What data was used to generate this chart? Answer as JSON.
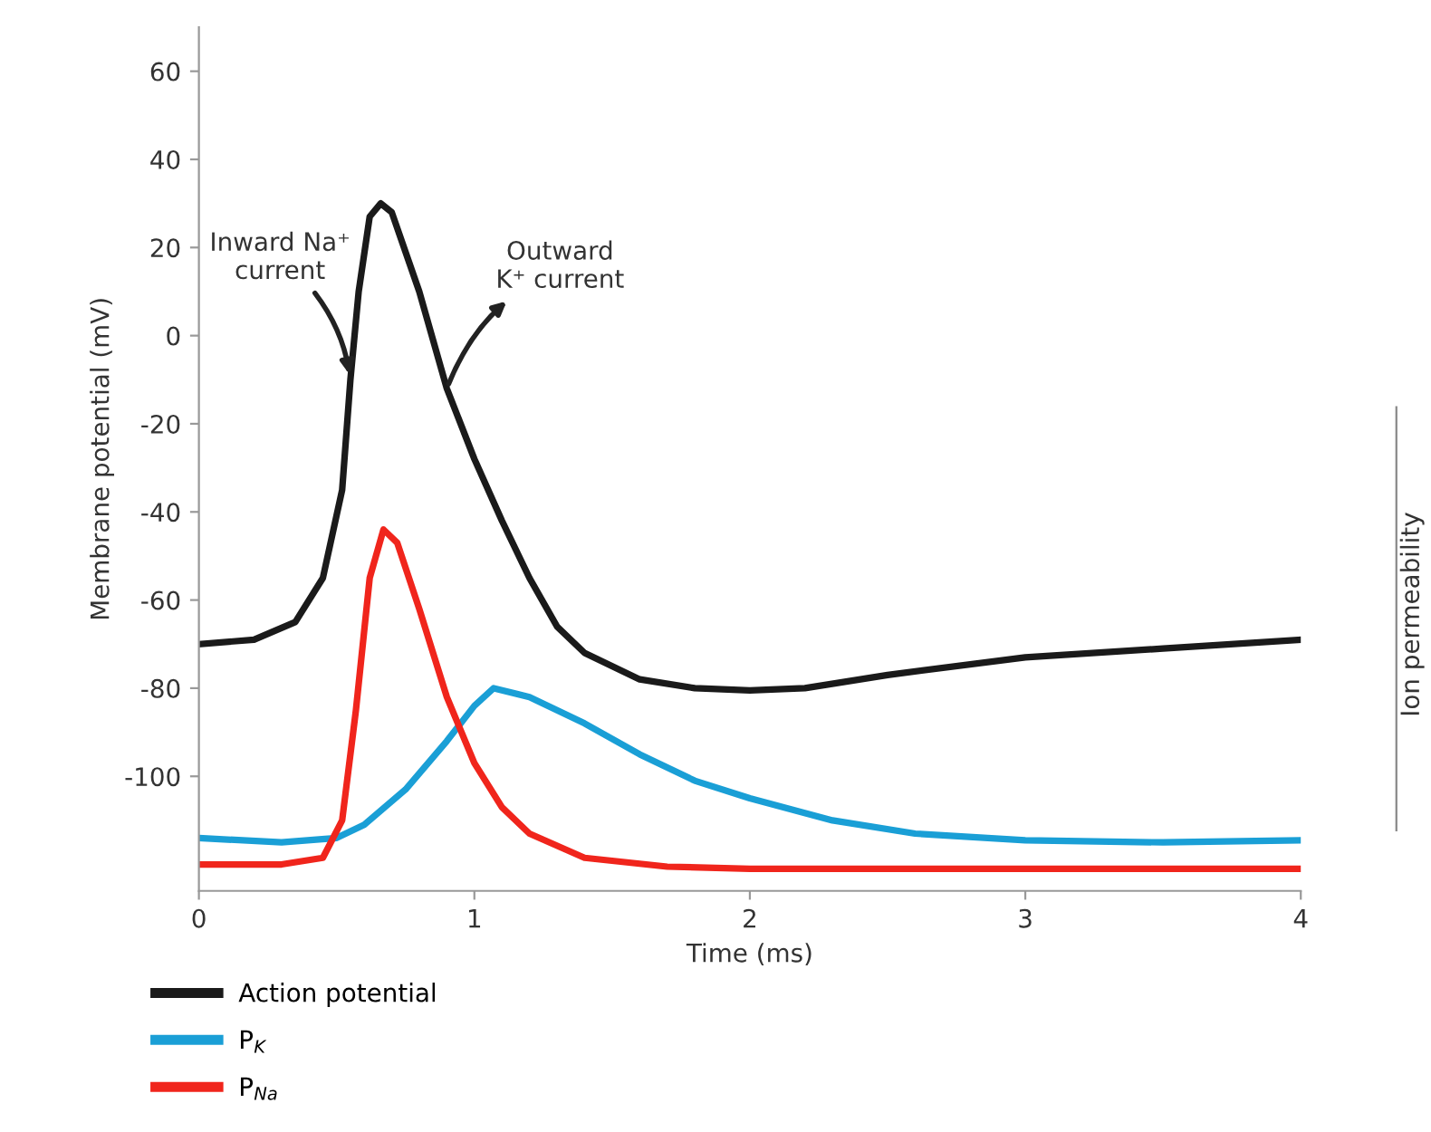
{
  "chart_data": {
    "type": "line",
    "xlabel": "Time (ms)",
    "ylabel": "Membrane potential (mV)",
    "y2label": "Ion permeability",
    "xlim": [
      0,
      4
    ],
    "xticks": [
      0,
      1,
      2,
      3,
      4
    ],
    "ylim": [
      -126,
      70
    ],
    "yticks": [
      -100,
      -80,
      -60,
      -40,
      -20,
      0,
      20,
      40,
      60
    ],
    "grid": false,
    "legend": "bottom left",
    "marker": "none",
    "line_style": "solid",
    "annotations": [
      {
        "text": "Inward Na⁺\ncurrent",
        "x": 0.55,
        "y": -10
      },
      {
        "text": "Outward\nK⁺ current",
        "x": 0.9,
        "y": -12
      }
    ],
    "series": [
      {
        "name": "Action potential",
        "color": "#1a1a1a",
        "x": [
          0,
          0.2,
          0.35,
          0.45,
          0.52,
          0.55,
          0.58,
          0.62,
          0.66,
          0.7,
          0.8,
          0.9,
          1.0,
          1.1,
          1.2,
          1.3,
          1.4,
          1.6,
          1.8,
          2.0,
          2.2,
          2.5,
          3.0,
          3.5,
          4.0
        ],
        "values": [
          -70,
          -69,
          -65,
          -55,
          -35,
          -10,
          10,
          27,
          30,
          28,
          10,
          -12,
          -28,
          -42,
          -55,
          -66,
          -72,
          -78,
          -80,
          -80.5,
          -80,
          -77,
          -73,
          -71,
          -69
        ]
      },
      {
        "name": "P$_{K}$",
        "color": "#1a9fd6",
        "x": [
          0,
          0.3,
          0.5,
          0.6,
          0.75,
          0.9,
          1.0,
          1.07,
          1.2,
          1.4,
          1.6,
          1.8,
          2.0,
          2.3,
          2.6,
          3.0,
          3.5,
          4.0
        ],
        "values": [
          -114,
          -115,
          -114,
          -111,
          -103,
          -92,
          -84,
          -80,
          -82,
          -88,
          -95,
          -101,
          -105,
          -110,
          -113,
          -114.5,
          -115,
          -114.5
        ]
      },
      {
        "name": "P$_{Na}$",
        "color": "#f0251c",
        "x": [
          0,
          0.3,
          0.45,
          0.52,
          0.57,
          0.62,
          0.67,
          0.72,
          0.8,
          0.9,
          1.0,
          1.1,
          1.2,
          1.4,
          1.7,
          2.0,
          4.0
        ],
        "values": [
          -120,
          -120,
          -118.5,
          -110,
          -85,
          -55,
          -44,
          -47,
          -62,
          -82,
          -97,
          -107,
          -113,
          -118.5,
          -120.5,
          -121,
          -121
        ]
      }
    ]
  }
}
